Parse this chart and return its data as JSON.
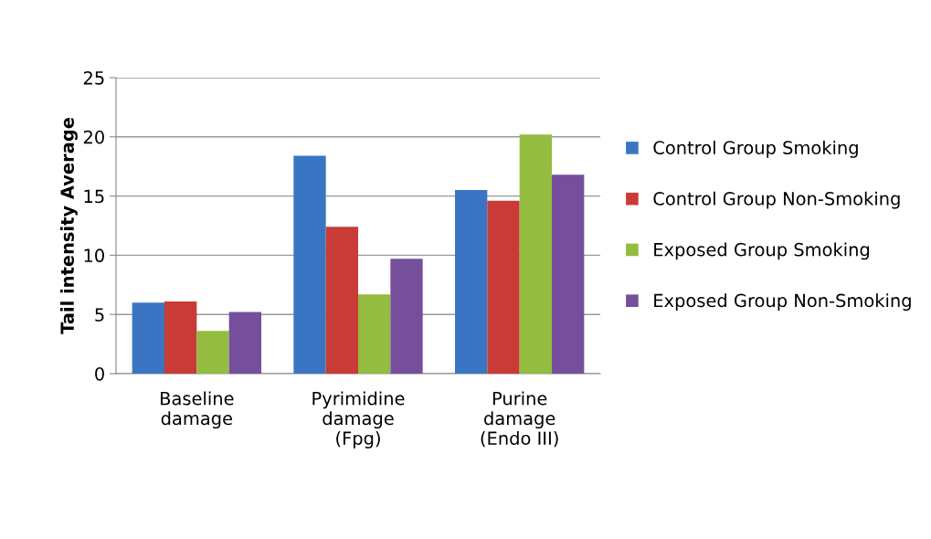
{
  "chart_data": {
    "type": "bar",
    "ylabel": "Tail intensity Average",
    "categories": [
      "Baseline\ndamage",
      "Pyrimidine\ndamage\n(Fpg)",
      "Purine\ndamage\n(Endo III)"
    ],
    "series": [
      {
        "name": "Control Group Smoking",
        "color": "#3a75c4",
        "values": [
          6.0,
          18.4,
          15.5
        ]
      },
      {
        "name": "Control Group Non-Smoking",
        "color": "#c83b37",
        "values": [
          6.1,
          12.4,
          14.6
        ]
      },
      {
        "name": "Exposed Group Smoking",
        "color": "#93bc40",
        "values": [
          3.6,
          6.7,
          20.2
        ]
      },
      {
        "name": "Exposed Group Non-Smoking",
        "color": "#764f9c",
        "values": [
          5.2,
          9.7,
          16.8
        ]
      }
    ],
    "ylim": [
      0,
      25
    ],
    "yticks": [
      0,
      5,
      10,
      15,
      20,
      25
    ],
    "grid": "y",
    "legend": "right"
  }
}
